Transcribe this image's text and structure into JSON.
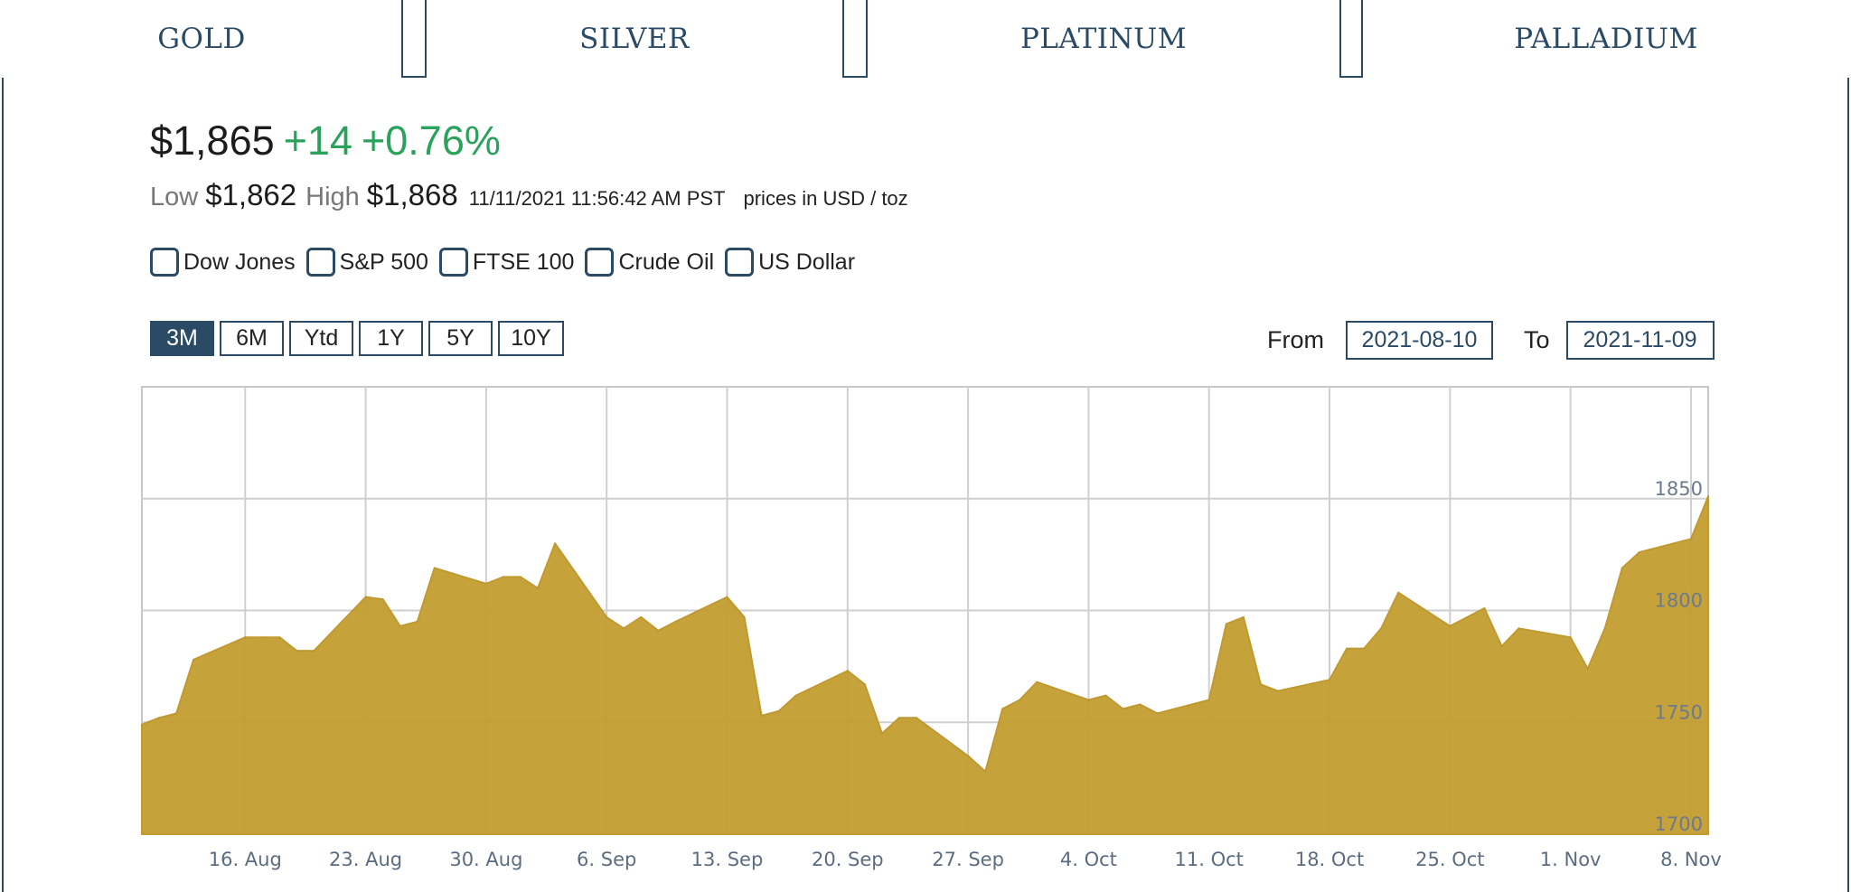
{
  "tabs": [
    {
      "label": "GOLD",
      "active": true
    },
    {
      "label": "SILVER",
      "active": false
    },
    {
      "label": "PLATINUM",
      "active": false
    },
    {
      "label": "PALLADIUM",
      "active": false
    }
  ],
  "quote": {
    "price": "$1,865",
    "change": "+14",
    "change_pct": "+0.76%",
    "low_label": "Low",
    "low": "$1,862",
    "high_label": "High",
    "high": "$1,868",
    "timestamp": "11/11/2021 11:56:42 AM PST",
    "units": "prices in USD / toz"
  },
  "compare": [
    "Dow Jones",
    "S&P 500",
    "FTSE 100",
    "Crude Oil",
    "US Dollar"
  ],
  "ranges": [
    {
      "label": "3M",
      "active": true
    },
    {
      "label": "6M",
      "active": false
    },
    {
      "label": "Ytd",
      "active": false
    },
    {
      "label": "1Y",
      "active": false
    },
    {
      "label": "5Y",
      "active": false
    },
    {
      "label": "10Y",
      "active": false
    }
  ],
  "date_range": {
    "from_label": "From",
    "from": "2021-08-10",
    "to_label": "To",
    "to": "2021-11-09"
  },
  "colors": {
    "accent": "#2a4a66",
    "positive": "#2aa25c",
    "area": "#c49e33",
    "grid": "#cccccc"
  },
  "chart_data": {
    "type": "area",
    "title": "",
    "xlabel": "",
    "ylabel": "",
    "grid": true,
    "ylim": [
      1700,
      1900
    ],
    "y_ticks": [
      1700,
      1750,
      1800,
      1850
    ],
    "x_ticks": [
      "16. Aug",
      "23. Aug",
      "30. Aug",
      "6. Sep",
      "13. Sep",
      "20. Sep",
      "27. Sep",
      "4. Oct",
      "11. Oct",
      "18. Oct",
      "25. Oct",
      "1. Nov",
      "8. Nov"
    ],
    "x_tick_dates": [
      "2021-08-16",
      "2021-08-23",
      "2021-08-30",
      "2021-09-06",
      "2021-09-13",
      "2021-09-20",
      "2021-09-27",
      "2021-10-04",
      "2021-10-11",
      "2021-10-18",
      "2021-10-25",
      "2021-11-01",
      "2021-11-08"
    ],
    "series": [
      {
        "values": [
          [
            "2021-08-10",
            1749
          ],
          [
            "2021-08-11",
            1752
          ],
          [
            "2021-08-12",
            1754
          ],
          [
            "2021-08-13",
            1778
          ],
          [
            "2021-08-16",
            1788
          ],
          [
            "2021-08-17",
            1788
          ],
          [
            "2021-08-18",
            1788
          ],
          [
            "2021-08-19",
            1782
          ],
          [
            "2021-08-20",
            1782
          ],
          [
            "2021-08-23",
            1806
          ],
          [
            "2021-08-24",
            1805
          ],
          [
            "2021-08-25",
            1793
          ],
          [
            "2021-08-26",
            1795
          ],
          [
            "2021-08-27",
            1819
          ],
          [
            "2021-08-30",
            1812
          ],
          [
            "2021-08-31",
            1815
          ],
          [
            "2021-09-01",
            1815
          ],
          [
            "2021-09-02",
            1810
          ],
          [
            "2021-09-03",
            1830
          ],
          [
            "2021-09-06",
            1797
          ],
          [
            "2021-09-07",
            1792
          ],
          [
            "2021-09-08",
            1797
          ],
          [
            "2021-09-09",
            1791
          ],
          [
            "2021-09-10",
            1795
          ],
          [
            "2021-09-13",
            1806
          ],
          [
            "2021-09-14",
            1797
          ],
          [
            "2021-09-15",
            1753
          ],
          [
            "2021-09-16",
            1755
          ],
          [
            "2021-09-17",
            1762
          ],
          [
            "2021-09-20",
            1773
          ],
          [
            "2021-09-21",
            1767
          ],
          [
            "2021-09-22",
            1745
          ],
          [
            "2021-09-23",
            1752
          ],
          [
            "2021-09-24",
            1752
          ],
          [
            "2021-09-27",
            1735
          ],
          [
            "2021-09-28",
            1728
          ],
          [
            "2021-09-29",
            1756
          ],
          [
            "2021-09-30",
            1760
          ],
          [
            "2021-10-01",
            1768
          ],
          [
            "2021-10-04",
            1760
          ],
          [
            "2021-10-05",
            1762
          ],
          [
            "2021-10-06",
            1756
          ],
          [
            "2021-10-07",
            1758
          ],
          [
            "2021-10-08",
            1754
          ],
          [
            "2021-10-11",
            1760
          ],
          [
            "2021-10-12",
            1794
          ],
          [
            "2021-10-13",
            1797
          ],
          [
            "2021-10-14",
            1767
          ],
          [
            "2021-10-15",
            1764
          ],
          [
            "2021-10-18",
            1769
          ],
          [
            "2021-10-19",
            1783
          ],
          [
            "2021-10-20",
            1783
          ],
          [
            "2021-10-21",
            1792
          ],
          [
            "2021-10-22",
            1808
          ],
          [
            "2021-10-25",
            1793
          ],
          [
            "2021-10-26",
            1797
          ],
          [
            "2021-10-27",
            1801
          ],
          [
            "2021-10-28",
            1784
          ],
          [
            "2021-10-29",
            1792
          ],
          [
            "2021-11-01",
            1788
          ],
          [
            "2021-11-02",
            1774
          ],
          [
            "2021-11-03",
            1792
          ],
          [
            "2021-11-04",
            1819
          ],
          [
            "2021-11-05",
            1826
          ],
          [
            "2021-11-08",
            1832
          ],
          [
            "2021-11-09",
            1851
          ]
        ]
      }
    ]
  }
}
